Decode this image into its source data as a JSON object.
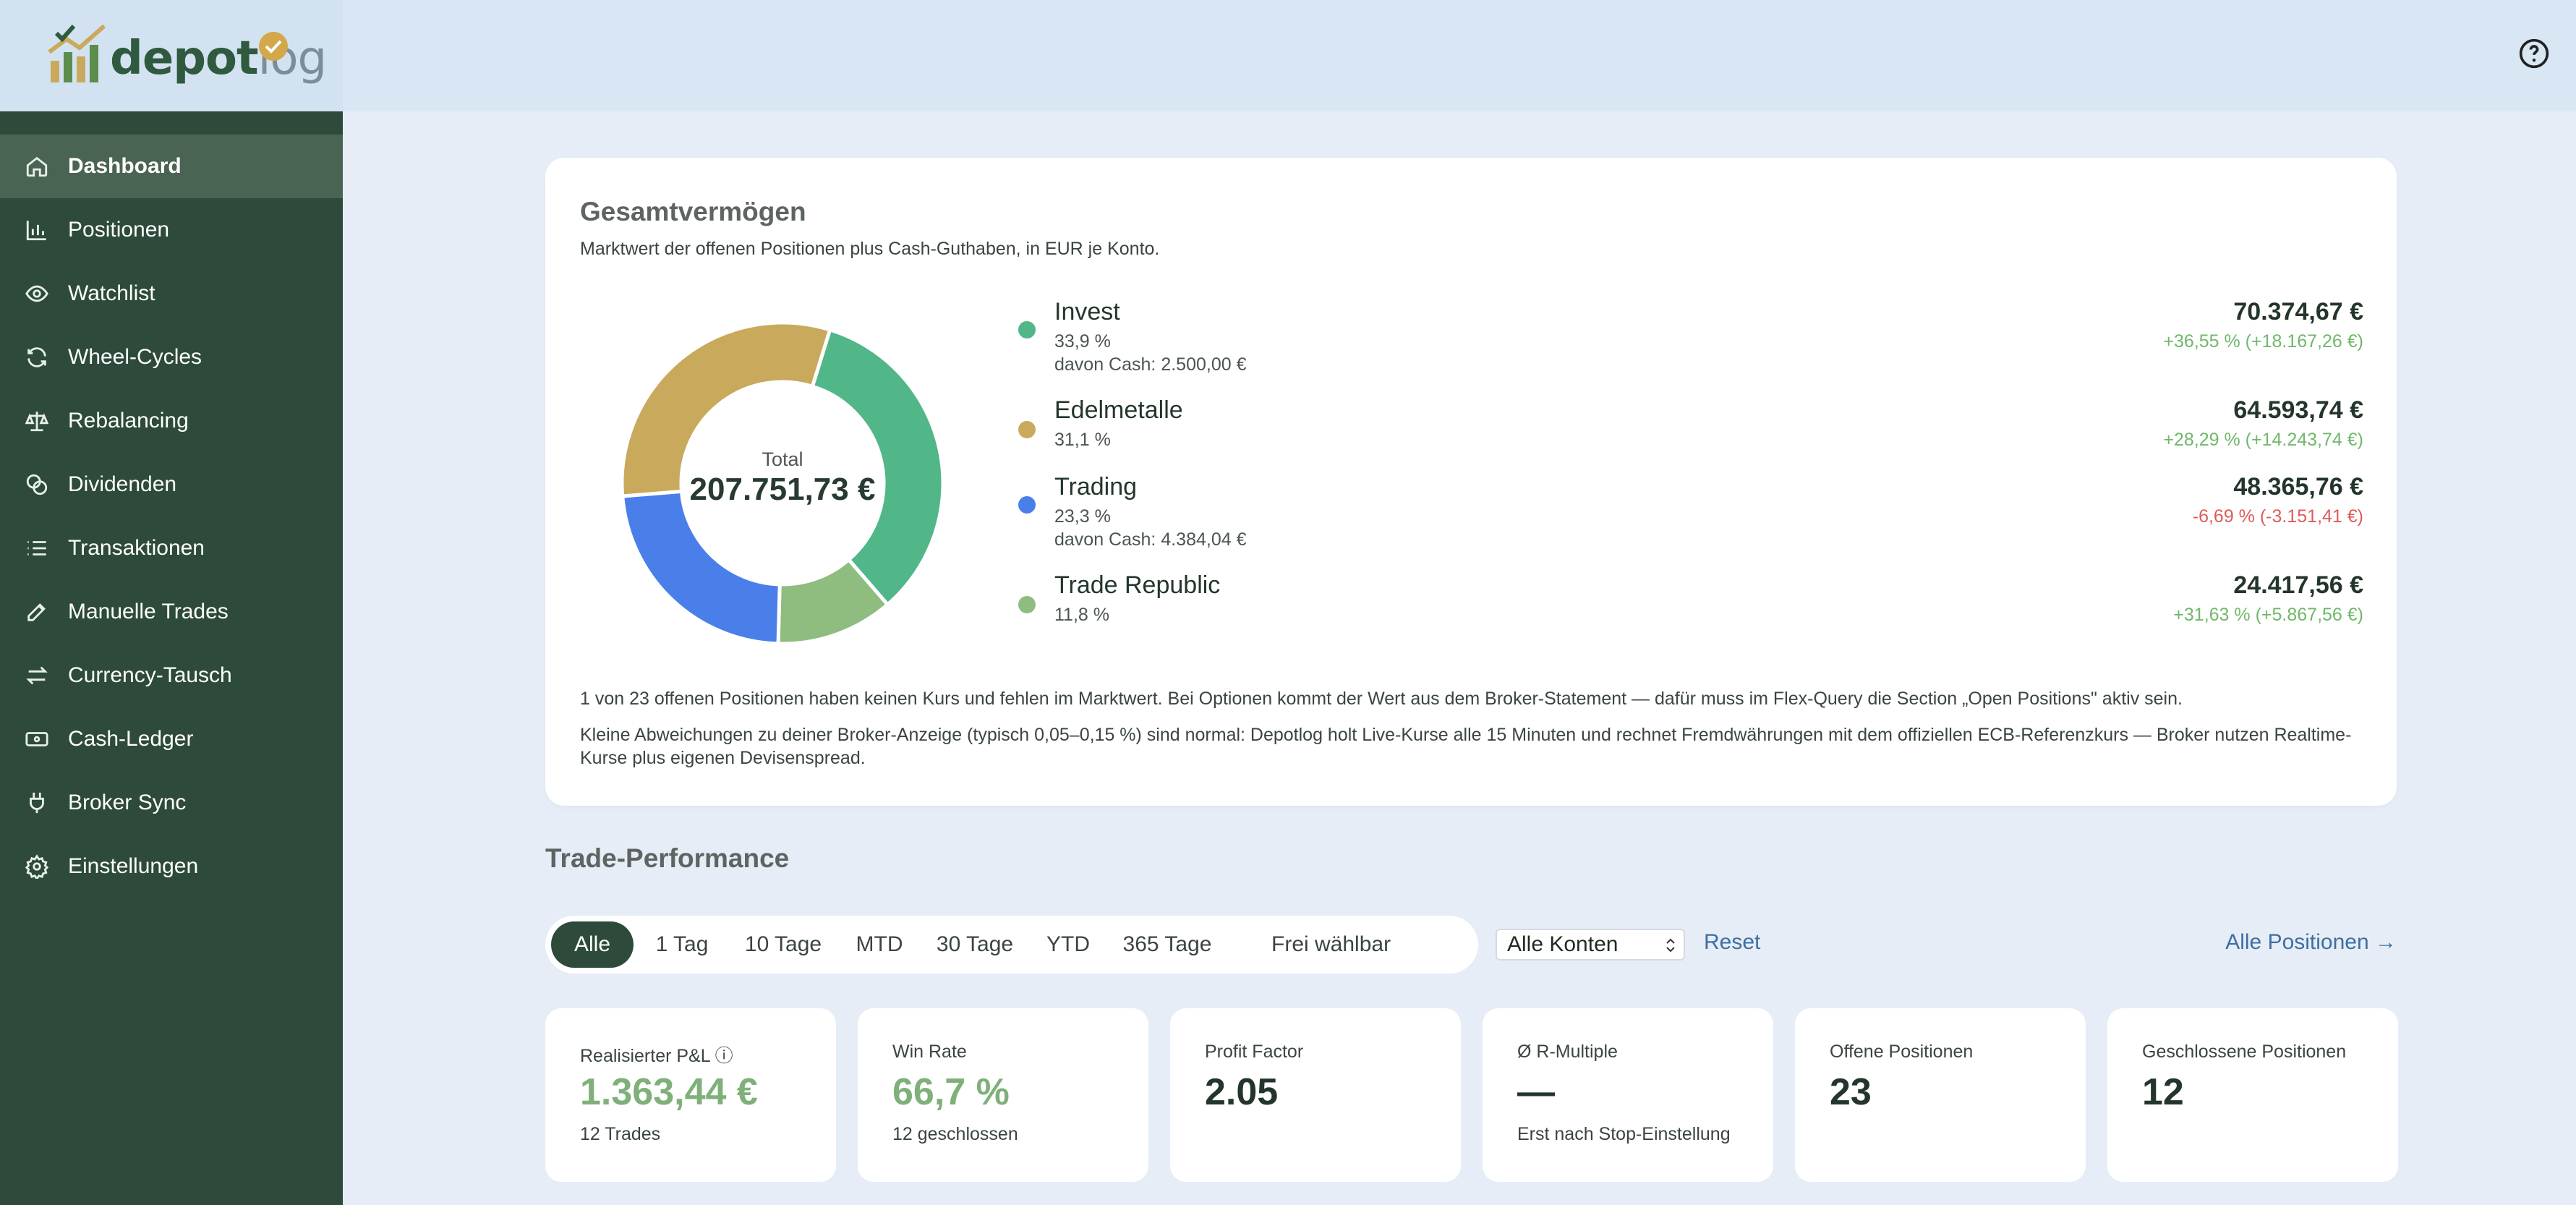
{
  "app": {
    "logo_main": "depot",
    "logo_accent": "log"
  },
  "sidebar": {
    "items": [
      {
        "label": "Dashboard",
        "icon": "home-icon",
        "active": true
      },
      {
        "label": "Positionen",
        "icon": "bar-chart-icon"
      },
      {
        "label": "Watchlist",
        "icon": "eye-icon"
      },
      {
        "label": "Wheel-Cycles",
        "icon": "refresh-icon"
      },
      {
        "label": "Rebalancing",
        "icon": "scale-icon"
      },
      {
        "label": "Dividenden",
        "icon": "coins-icon"
      },
      {
        "label": "Transaktionen",
        "icon": "list-icon"
      },
      {
        "label": "Manuelle Trades",
        "icon": "pencil-icon"
      },
      {
        "label": "Currency-Tausch",
        "icon": "swap-icon"
      },
      {
        "label": "Cash-Ledger",
        "icon": "banknote-icon"
      },
      {
        "label": "Broker Sync",
        "icon": "plug-icon"
      },
      {
        "label": "Einstellungen",
        "icon": "gear-icon"
      }
    ]
  },
  "wealth": {
    "title": "Gesamtvermögen",
    "subtitle": "Marktwert der offenen Positionen plus Cash-Guthaben, in EUR je Konto.",
    "total_label": "Total",
    "total_value": "207.751,73 €",
    "accounts": [
      {
        "name": "Invest",
        "pct": "33,9 %",
        "cash": "davon Cash: 2.500,00 €",
        "value": "70.374,67 €",
        "change": "+36,55 % (+18.167,26 €)",
        "color": "#52b788",
        "change_color": "#6fb86a",
        "share": 33.9
      },
      {
        "name": "Edelmetalle",
        "pct": "31,1 %",
        "cash": "",
        "value": "64.593,74 €",
        "change": "+28,29 % (+14.243,74 €)",
        "color": "#c9a95c",
        "change_color": "#6fb86a",
        "share": 31.1
      },
      {
        "name": "Trading",
        "pct": "23,3 %",
        "cash": "davon Cash: 4.384,04 €",
        "value": "48.365,76 €",
        "change": "-6,69 % (-3.151,41 €)",
        "color": "#4a7fea",
        "change_color": "#e05a5a",
        "share": 23.3
      },
      {
        "name": "Trade Republic",
        "pct": "11,8 %",
        "cash": "",
        "value": "24.417,56 €",
        "change": "+31,63 % (+5.867,56 €)",
        "color": "#8fbc7f",
        "change_color": "#6fb86a",
        "share": 11.8
      }
    ],
    "note1": "1 von 23 offenen Positionen haben keinen Kurs und fehlen im Marktwert. Bei Optionen kommt der Wert aus dem Broker-Statement — dafür muss im Flex-Query die Section „Open Positions\" aktiv sein.",
    "note2": "Kleine Abweichungen zu deiner Broker-Anzeige (typisch 0,05–0,15 %) sind normal: Depotlog holt Live-Kurse alle 15 Minuten und rechnet Fremdwährungen mit dem offiziellen ECB-Referenzkurs — Broker nutzen Realtime-Kurse plus eigenen Devisenspread."
  },
  "performance": {
    "title": "Trade-Performance",
    "filters": [
      "Alle",
      "1 Tag",
      "10 Tage",
      "MTD",
      "30 Tage",
      "YTD",
      "365 Tage",
      "Frei wählbar"
    ],
    "active_filter": "Alle",
    "account_select": "Alle Konten",
    "reset": "Reset",
    "all_positions": "Alle Positionen →",
    "stats": [
      {
        "label": "Realisierter P&L ⓘ",
        "value": "1.363,44 €",
        "sub": "12 Trades",
        "green": true
      },
      {
        "label": "Win Rate",
        "value": "66,7 %",
        "sub": "12 geschlossen",
        "green": true
      },
      {
        "label": "Profit Factor",
        "value": "2.05",
        "sub": ""
      },
      {
        "label": "Ø R-Multiple",
        "value": "—",
        "sub": "Erst nach Stop-Einstellung"
      },
      {
        "label": "Offene Positionen",
        "value": "23",
        "sub": ""
      },
      {
        "label": "Geschlossene Positionen",
        "value": "12",
        "sub": ""
      }
    ]
  }
}
